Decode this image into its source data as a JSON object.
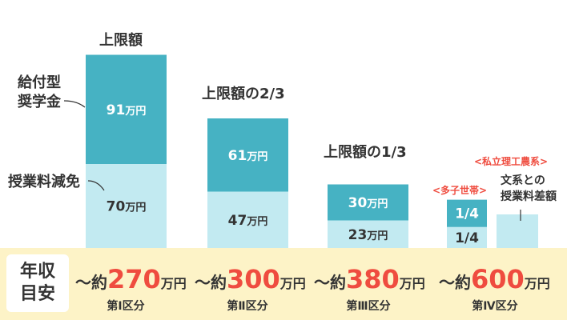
{
  "chart_data": {
    "type": "bar",
    "stacked": true,
    "categories": [
      "第Ⅰ区分",
      "第Ⅱ区分",
      "第Ⅲ区分",
      "第Ⅳ区分"
    ],
    "top_labels": [
      "上限額",
      "上限額の2/3",
      "上限額の1/3",
      ""
    ],
    "series": [
      {
        "name": "授業料減免",
        "values": [
          70,
          47,
          23,
          0
        ],
        "value_labels": [
          "70万円",
          "47万円",
          "23万円",
          "1/4"
        ],
        "color": "#c2eaf1"
      },
      {
        "name": "給付型奨学金",
        "values": [
          91,
          61,
          30,
          0
        ],
        "value_labels": [
          "91万円",
          "61万円",
          "30万円",
          "1/4"
        ],
        "color": "#46b2c3"
      }
    ],
    "side_labels": {
      "scholarship": "給付型\n奨学金",
      "tuition": "授業料減免"
    },
    "income_label": "年収\n目安",
    "incomes": [
      {
        "prefix": "～約",
        "value": "270",
        "unit": "万円"
      },
      {
        "prefix": "～約",
        "value": "300",
        "unit": "万円"
      },
      {
        "prefix": "～約",
        "value": "380",
        "unit": "万円"
      },
      {
        "prefix": "～約",
        "value": "600",
        "unit": "万円"
      }
    ],
    "annotations": {
      "multi_child": "<多子世帯>",
      "private_sci": "<私立理工農系>",
      "liberal_arts_diff": "文系との\n授業料差額"
    }
  }
}
